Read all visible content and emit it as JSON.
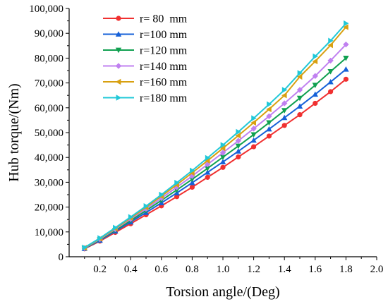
{
  "chart_data": {
    "type": "line",
    "xlabel": "Torsion angle/(Deg)",
    "ylabel": "Hub torque/(Nm)",
    "xlim": [
      0.0,
      2.0
    ],
    "ylim": [
      0,
      100000
    ],
    "x_ticks": [
      "0.2",
      "0.4",
      "0.6",
      "0.8",
      "1.0",
      "1.2",
      "1.4",
      "1.6",
      "1.8",
      "2.0"
    ],
    "y_ticks": [
      "0",
      "10,000",
      "20,000",
      "30,000",
      "40,000",
      "50,000",
      "60,000",
      "70,000",
      "80,000",
      "90,000",
      "100,000"
    ],
    "grid": false,
    "legend_position": "top-left",
    "x": [
      0.1,
      0.2,
      0.3,
      0.4,
      0.5,
      0.6,
      0.7,
      0.8,
      0.9,
      1.0,
      1.1,
      1.2,
      1.3,
      1.4,
      1.5,
      1.6,
      1.7,
      1.8
    ],
    "series": [
      {
        "name": "r= 80  mm",
        "color": "#f03030",
        "marker": "circle",
        "values": [
          3200,
          6300,
          9800,
          13300,
          16900,
          20500,
          24200,
          28000,
          32000,
          36000,
          40200,
          44300,
          48600,
          52900,
          57200,
          61800,
          66500,
          71500
        ]
      },
      {
        "name": "r=100 mm",
        "color": "#1560d8",
        "marker": "triangle-up",
        "values": [
          3300,
          6600,
          10300,
          14000,
          17800,
          21700,
          25700,
          29800,
          34000,
          38200,
          42500,
          46900,
          51400,
          56000,
          60600,
          65400,
          70400,
          75500
        ]
      },
      {
        "name": "r=120 mm",
        "color": "#10a050",
        "marker": "triangle-down",
        "values": [
          3400,
          6900,
          10700,
          14600,
          18600,
          22700,
          26900,
          31200,
          35600,
          40100,
          44600,
          49200,
          54000,
          58900,
          63900,
          69100,
          74600,
          80000
        ]
      },
      {
        "name": "r=140 mm",
        "color": "#c080f0",
        "marker": "diamond",
        "values": [
          3500,
          7100,
          11100,
          15200,
          19300,
          23600,
          28000,
          32500,
          37200,
          41900,
          46700,
          51600,
          56600,
          61800,
          67200,
          72800,
          79000,
          85500
        ]
      },
      {
        "name": "r=160 mm",
        "color": "#d8a010",
        "marker": "triangle-left",
        "values": [
          3600,
          7300,
          11400,
          15600,
          19900,
          24400,
          29000,
          33800,
          38700,
          43700,
          48800,
          54000,
          59400,
          65000,
          72500,
          78700,
          85200,
          92500
        ]
      },
      {
        "name": "r=180 mm",
        "color": "#20c8d8",
        "marker": "triangle-right",
        "values": [
          3700,
          7500,
          11700,
          16000,
          20400,
          25000,
          29800,
          34700,
          39800,
          45000,
          50300,
          55800,
          61400,
          67200,
          74000,
          80700,
          87000,
          94000
        ]
      }
    ]
  }
}
